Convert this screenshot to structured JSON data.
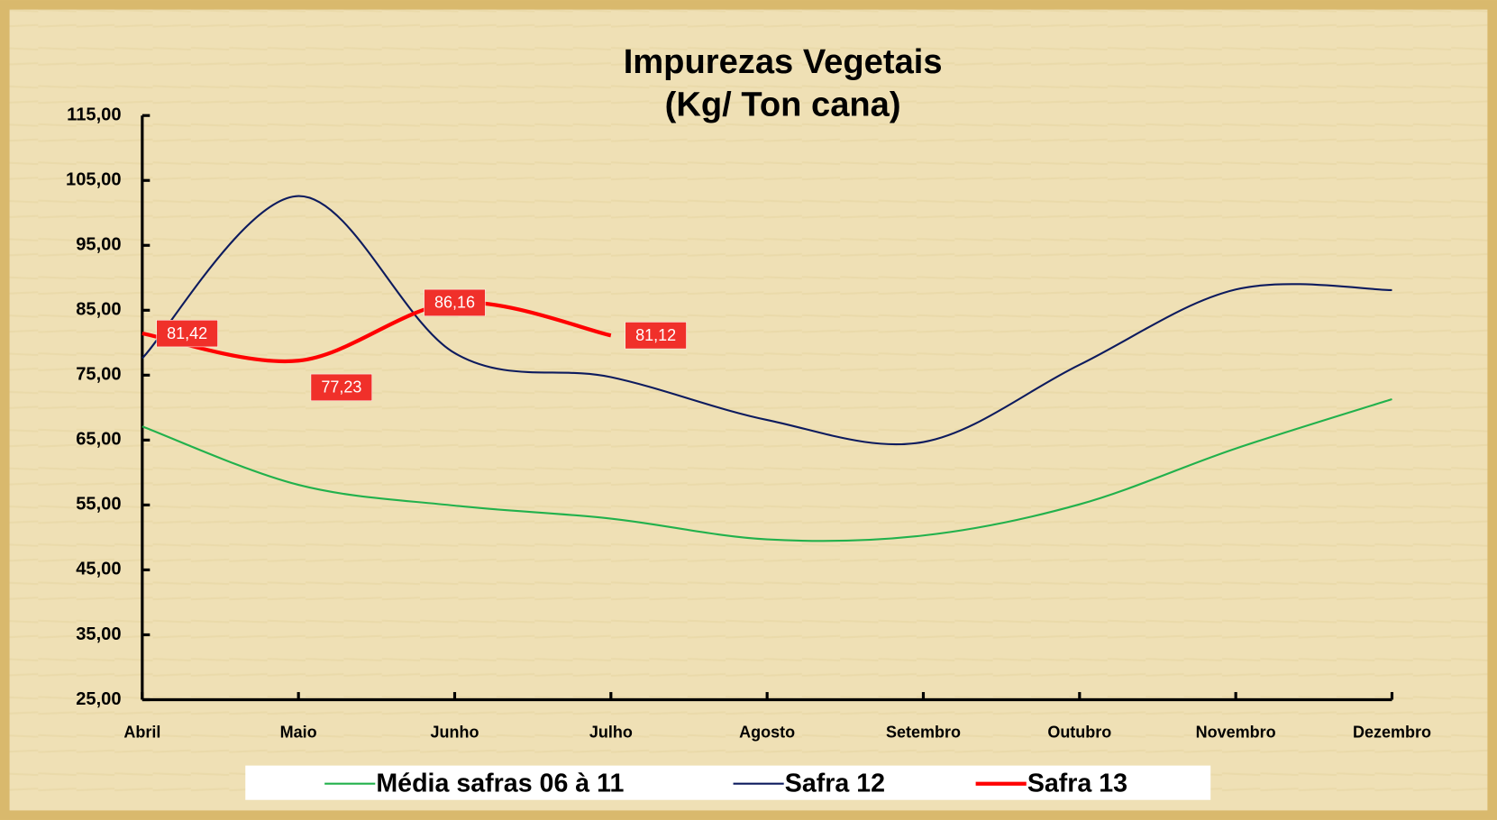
{
  "chart_data": {
    "type": "line",
    "title": "Impurezas Vegetais",
    "subtitle": "(Kg/ Ton cana)",
    "categories": [
      "Abril",
      "Maio",
      "Junho",
      "Julho",
      "Agosto",
      "Setembro",
      "Outubro",
      "Novembro",
      "Dezembro"
    ],
    "series": [
      {
        "name": "Média safras 06 à 11",
        "color": "#22b14c",
        "values": [
          67.1,
          58.1,
          54.9,
          52.9,
          49.7,
          50.3,
          55.1,
          63.7,
          71.3
        ]
      },
      {
        "name": "Safra 12",
        "color": "#0d1b5e",
        "values": [
          77.6,
          102.6,
          78.4,
          74.7,
          68.1,
          64.7,
          76.6,
          88.2,
          88.1
        ]
      },
      {
        "name": "Safra 13",
        "color": "#ff0000",
        "values": [
          81.42,
          77.23,
          86.16,
          81.12,
          null,
          null,
          null,
          null,
          null
        ],
        "value_labels": [
          "81,42",
          "77,23",
          "86,16",
          "81,12",
          null,
          null,
          null,
          null,
          null
        ]
      }
    ],
    "ylim": [
      25,
      115
    ],
    "yticks": [
      {
        "value": 25,
        "label": "25,00"
      },
      {
        "value": 35,
        "label": "35,00"
      },
      {
        "value": 45,
        "label": "45,00"
      },
      {
        "value": 55,
        "label": "55,00"
      },
      {
        "value": 65,
        "label": "65,00"
      },
      {
        "value": 75,
        "label": "75,00"
      },
      {
        "value": 85,
        "label": "85,00"
      },
      {
        "value": 95,
        "label": "95,00"
      },
      {
        "value": 105,
        "label": "105,00"
      },
      {
        "value": 115,
        "label": "115,00"
      }
    ],
    "legend": "bottom"
  }
}
